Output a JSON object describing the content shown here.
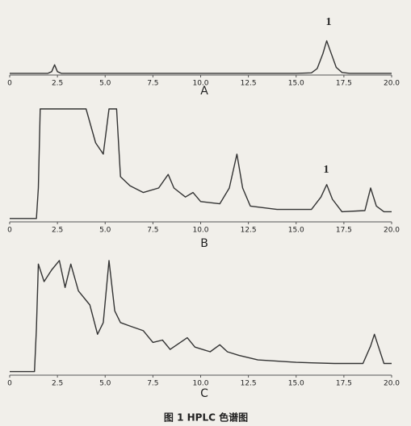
{
  "chart_data": [
    {
      "type": "line",
      "label": "A",
      "annotation": "1",
      "color": "#333333",
      "xlim": [
        0,
        20
      ],
      "ylim": [
        0,
        100
      ],
      "xticks": [
        0,
        2.5,
        {
          "value": 5,
          "label": "5.0"
        },
        7.5,
        {
          "value": 10,
          "label": "10.0"
        },
        12.5,
        {
          "value": 15,
          "label": "15.0"
        },
        17.5,
        {
          "value": 20,
          "label": "20.0"
        }
      ],
      "x": [
        0,
        2.0,
        2.2,
        2.35,
        2.5,
        2.7,
        5,
        10,
        15,
        15.8,
        16.1,
        16.4,
        16.6,
        16.8,
        17.1,
        17.4,
        17.8,
        20
      ],
      "values": [
        4,
        4,
        8,
        24,
        8,
        4,
        4,
        4,
        4,
        5,
        15,
        50,
        80,
        55,
        18,
        6,
        4,
        4
      ]
    },
    {
      "type": "line",
      "label": "B",
      "annotation": "1",
      "color": "#333333",
      "xlim": [
        0,
        20
      ],
      "ylim": [
        0,
        100
      ],
      "xticks": [
        0,
        2.5,
        {
          "value": 5,
          "label": "5.0"
        },
        7.5,
        {
          "value": 10,
          "label": "10.0"
        },
        12.5,
        {
          "value": 15,
          "label": "15.0"
        },
        17.5,
        {
          "value": 20,
          "label": "20.0"
        }
      ],
      "x": [
        0,
        1.4,
        1.5,
        1.6,
        4.0,
        4.5,
        4.9,
        5.2,
        5.6,
        5.8,
        6.3,
        7.0,
        7.8,
        8.3,
        8.6,
        9.2,
        9.6,
        10,
        11,
        11.5,
        11.9,
        12.2,
        12.6,
        14,
        15.8,
        16.3,
        16.6,
        16.9,
        17.4,
        18.6,
        18.9,
        19.2,
        19.6,
        20
      ],
      "values": [
        3,
        3,
        30,
        100,
        100,
        70,
        60,
        100,
        100,
        40,
        32,
        26,
        30,
        42,
        30,
        22,
        26,
        18,
        16,
        30,
        60,
        30,
        14,
        11,
        11,
        22,
        33,
        20,
        9,
        10,
        30,
        14,
        9,
        9
      ]
    },
    {
      "type": "line",
      "label": "C",
      "color": "#333333",
      "xlim": [
        0,
        20
      ],
      "ylim": [
        0,
        100
      ],
      "xticks": [
        0,
        2.5,
        {
          "value": 5,
          "label": "5.0"
        },
        7.5,
        {
          "value": 10,
          "label": "10.0"
        },
        12.5,
        {
          "value": 15,
          "label": "15.0"
        },
        17.5,
        {
          "value": 20,
          "label": "20.0"
        }
      ],
      "x": [
        0,
        1.3,
        1.4,
        1.5,
        1.8,
        2.2,
        2.6,
        2.9,
        3.2,
        3.6,
        4.2,
        4.6,
        4.9,
        5.2,
        5.5,
        5.8,
        6.3,
        7.0,
        7.5,
        8.0,
        8.4,
        9.3,
        9.7,
        10.5,
        11.0,
        11.4,
        12,
        13,
        15,
        17,
        18.5,
        18.9,
        19.1,
        19.3,
        19.6,
        20
      ],
      "values": [
        3,
        3,
        40,
        95,
        80,
        90,
        98,
        75,
        95,
        72,
        60,
        35,
        45,
        98,
        55,
        45,
        42,
        38,
        28,
        30,
        22,
        32,
        24,
        20,
        26,
        20,
        17,
        13,
        11,
        10,
        10,
        25,
        35,
        25,
        10,
        10
      ]
    }
  ],
  "figure_caption": "图 1   HPLC 色谱图"
}
